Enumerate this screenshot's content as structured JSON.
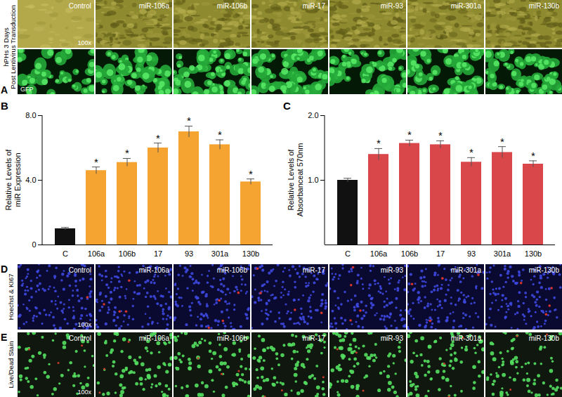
{
  "chart_data": [
    {
      "type": "bar",
      "title": "B",
      "categories": [
        "C",
        "106a",
        "106b",
        "17",
        "93",
        "301a",
        "130b"
      ],
      "values": [
        1.0,
        4.6,
        5.1,
        6.0,
        7.0,
        6.2,
        3.9
      ],
      "errors": [
        0.08,
        0.22,
        0.25,
        0.3,
        0.35,
        0.3,
        0.18
      ],
      "significance": [
        null,
        "*",
        "*",
        "*",
        "*",
        "*",
        "*"
      ],
      "colors": [
        "#111111",
        "#f5a331",
        "#f5a331",
        "#f5a331",
        "#f5a331",
        "#f5a331",
        "#f5a331"
      ],
      "ylabel": "Relative Levels of miR Expression",
      "ylim": [
        0,
        8
      ],
      "yticks": [
        0,
        {
          "value": 4,
          "label": "4.0"
        },
        {
          "value": 8,
          "label": "8.0"
        }
      ],
      "grid": false
    },
    {
      "type": "bar",
      "title": "C",
      "categories": [
        "C",
        "106a",
        "106b",
        "17",
        "93",
        "301a",
        "130b"
      ],
      "values": [
        1.0,
        1.4,
        1.57,
        1.55,
        1.28,
        1.43,
        1.25
      ],
      "errors": [
        0.03,
        0.09,
        0.05,
        0.06,
        0.07,
        0.09,
        0.05
      ],
      "significance": [
        null,
        "*",
        "*",
        "*",
        "*",
        "*",
        "*"
      ],
      "colors": [
        "#111111",
        "#d9474b",
        "#d9474b",
        "#d9474b",
        "#d9474b",
        "#d9474b",
        "#d9474b"
      ],
      "ylabel": "Relative Levels of Absorbanceat 570nm",
      "ylim": [
        0,
        2
      ],
      "yticks": [
        {
          "value": 1,
          "label": "1.0"
        },
        {
          "value": 2,
          "label": "2.0"
        }
      ],
      "grid": false
    }
  ],
  "image_panels": [
    {
      "letter": "A",
      "side_label": "hPHs 3 Days Post Lentivirus Transduction",
      "rows": [
        {
          "tile_labels": [
            "Control",
            "miR-106a",
            "miR-106b",
            "miR-17",
            "miR-93",
            "miR-301a",
            "miR-130b"
          ],
          "magnification": "100x"
        },
        {
          "corner_label": "GFP"
        }
      ]
    },
    {
      "letter": "D",
      "side_label": "Hoechst & KI67",
      "rows": [
        {
          "tile_labels": [
            "Control",
            "miR-106a",
            "miR-106b",
            "miR-17",
            "miR-93",
            "miR-301a",
            "miR-130b"
          ],
          "magnification": "100x"
        }
      ]
    },
    {
      "letter": "E",
      "side_label": "Live/Dead Stain",
      "rows": [
        {
          "tile_labels": [
            "Control",
            "miR-106a",
            "miR-106b",
            "miR-17",
            "miR-93",
            "miR-301a",
            "miR-130b"
          ],
          "magnification": "100x"
        }
      ]
    }
  ]
}
